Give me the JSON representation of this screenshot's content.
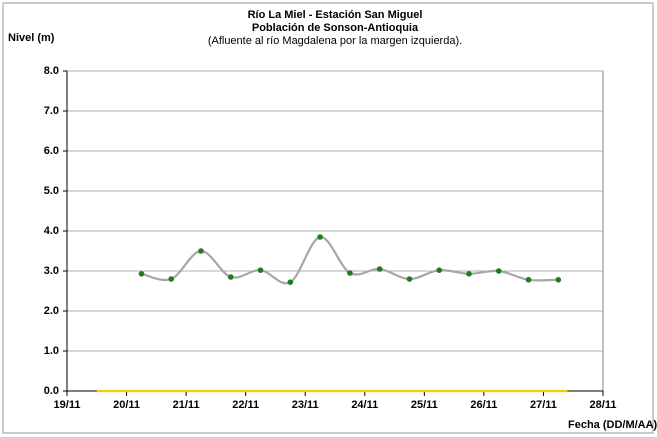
{
  "chart_data": {
    "type": "line",
    "title": "Río La Miel  - Estación San Miguel",
    "subtitle": "Población de Sonson-Antioquia",
    "annotation": "(Afluente al río Magdalena por la margen izquierda).",
    "y_label": "Nivel (m)",
    "x_label": "Fecha (DD/M/AA)",
    "x": [
      20.25,
      20.75,
      21.25,
      21.75,
      22.25,
      22.75,
      23.25,
      23.75,
      24.25,
      24.75,
      25.25,
      25.75,
      26.25,
      26.75,
      27.25
    ],
    "series": [
      {
        "color": "#a6a6a6",
        "marker_color": "#1e7b1e",
        "values": [
          2.93,
          2.8,
          3.5,
          2.85,
          3.02,
          2.72,
          3.85,
          2.95,
          3.05,
          2.8,
          3.02,
          2.93,
          3.0,
          2.78,
          2.78
        ]
      },
      {
        "color": "#ffcc00",
        "x": [
          19.5,
          27.4
        ],
        "values": [
          0,
          0
        ]
      }
    ],
    "xlim": [
      19,
      28
    ],
    "xticks": [
      {
        "value": 19,
        "label": "19/11"
      },
      {
        "value": 20,
        "label": "20/11"
      },
      {
        "value": 21,
        "label": "21/11"
      },
      {
        "value": 22,
        "label": "22/11"
      },
      {
        "value": 23,
        "label": "23/11"
      },
      {
        "value": 24,
        "label": "24/11"
      },
      {
        "value": 25,
        "label": "25/11"
      },
      {
        "value": 26,
        "label": "26/11"
      },
      {
        "value": 27,
        "label": "27/11"
      },
      {
        "value": 28,
        "label": "28/11"
      }
    ],
    "ylim": [
      0,
      8
    ],
    "yticks": [
      {
        "value": 0,
        "label": "0.0"
      },
      {
        "value": 1,
        "label": "1.0"
      },
      {
        "value": 2,
        "label": "2.0"
      },
      {
        "value": 3,
        "label": "3.0"
      },
      {
        "value": 4,
        "label": "4.0"
      },
      {
        "value": 5,
        "label": "5.0"
      },
      {
        "value": 6,
        "label": "6.0"
      },
      {
        "value": 7,
        "label": "7.0"
      },
      {
        "value": 8,
        "label": "8.0"
      }
    ],
    "grid": true
  }
}
